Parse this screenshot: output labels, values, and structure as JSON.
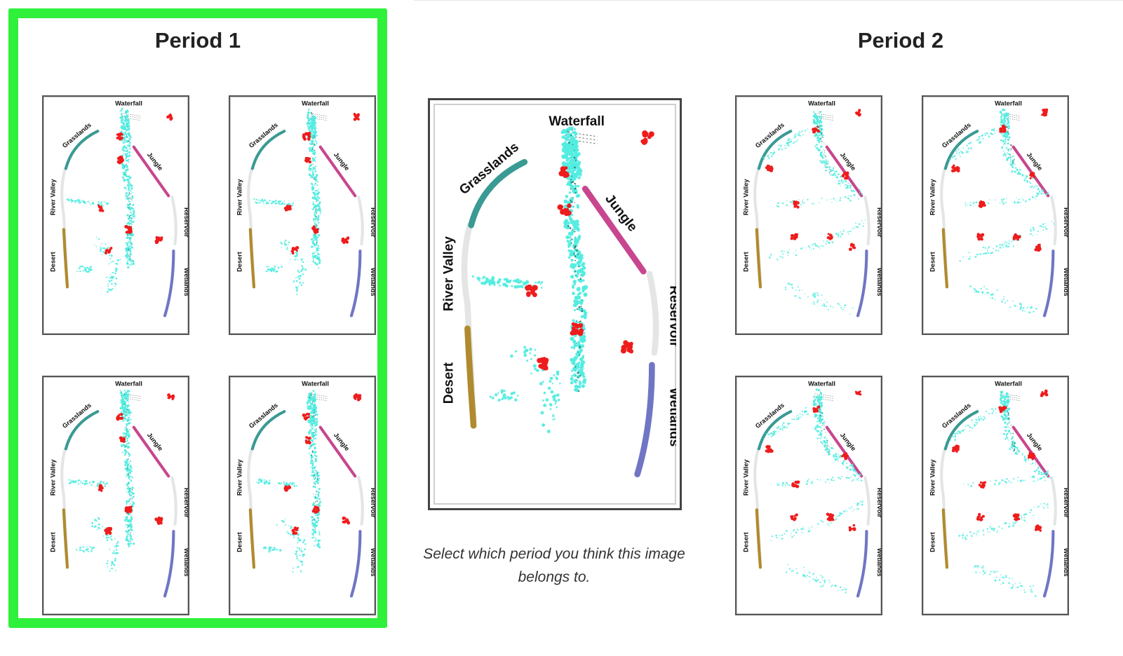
{
  "periods": [
    {
      "title": "Period 1",
      "selected": true,
      "thumbnails": [
        {
          "variant": "a"
        },
        {
          "variant": "b"
        },
        {
          "variant": "c"
        },
        {
          "variant": "d"
        }
      ]
    },
    {
      "title": "Period 2",
      "selected": false,
      "thumbnails": [
        {
          "variant": "e"
        },
        {
          "variant": "f"
        },
        {
          "variant": "g"
        },
        {
          "variant": "h"
        }
      ]
    }
  ],
  "map_labels": {
    "waterfall": "Waterfall",
    "grasslands": "Grasslands",
    "jungle": "Jungle",
    "river_valley": "River Valley",
    "reservoir": "Reservoir",
    "desert": "Desert",
    "wetlands": "Wetlands"
  },
  "prompt": "Select which period you think this image belongs to.",
  "colors": {
    "selection_border": "#2ff03b",
    "grasslands": "#3a9a94",
    "jungle": "#c8468f",
    "desert": "#b08a2e",
    "wetlands": "#7076c4",
    "path_gray": "#e4e6e6",
    "activity_cyan": "#52ece0",
    "activity_dark": "#1f6b5f",
    "activity_red": "#ee1c1c"
  }
}
